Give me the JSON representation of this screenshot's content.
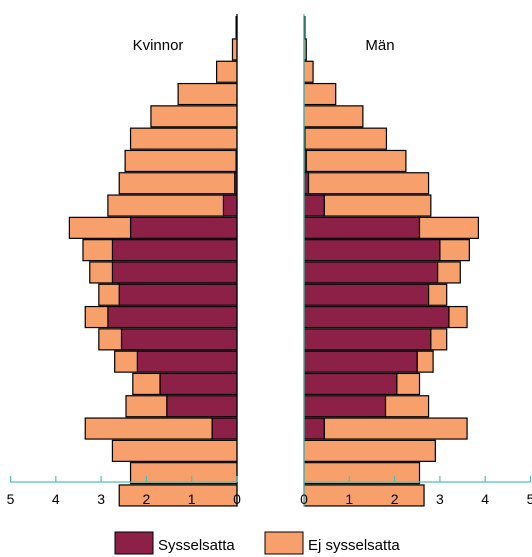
{
  "chart_data": {
    "type": "bar",
    "orientation": "horizontal",
    "stacked": true,
    "panels": [
      {
        "title": "Kvinnor",
        "direction": "left",
        "xlim": [
          0,
          5
        ],
        "ticks": [
          5,
          4,
          3,
          2,
          1,
          0
        ],
        "sysselsatta": [
          0,
          0,
          0,
          0,
          0,
          0,
          0.02,
          0.05,
          0.3,
          2.35,
          2.75,
          2.75,
          2.6,
          2.85,
          2.55,
          2.2,
          1.7,
          1.55,
          0.55,
          0,
          0,
          0
        ],
        "ej_sysselsatta": [
          0.02,
          0.1,
          0.45,
          1.3,
          1.9,
          2.35,
          2.45,
          2.55,
          2.55,
          1.35,
          0.65,
          0.5,
          0.45,
          0.5,
          0.5,
          0.5,
          0.6,
          0.9,
          2.8,
          2.75,
          2.35,
          2.6
        ]
      },
      {
        "title": "Män",
        "direction": "right",
        "xlim": [
          0,
          5
        ],
        "ticks": [
          0,
          1,
          2,
          3,
          4,
          5
        ],
        "sysselsatta": [
          0,
          0,
          0,
          0,
          0,
          0.02,
          0.05,
          0.1,
          0.45,
          2.55,
          3.0,
          2.95,
          2.75,
          3.2,
          2.8,
          2.5,
          2.05,
          1.8,
          0.45,
          0,
          0,
          0
        ],
        "ej_sysselsatta": [
          0.02,
          0.05,
          0.2,
          0.7,
          1.3,
          1.8,
          2.2,
          2.65,
          2.35,
          1.3,
          0.65,
          0.5,
          0.4,
          0.4,
          0.35,
          0.35,
          0.5,
          0.95,
          3.15,
          2.9,
          2.55,
          2.65
        ]
      }
    ],
    "legend": [
      {
        "name": "Sysselsatta",
        "color": "#8c2047"
      },
      {
        "name": "Ej sysselsatta",
        "color": "#f7a06b"
      }
    ],
    "legend_position": "bottom",
    "grid": false,
    "axis_color": "#4fc0b0"
  }
}
